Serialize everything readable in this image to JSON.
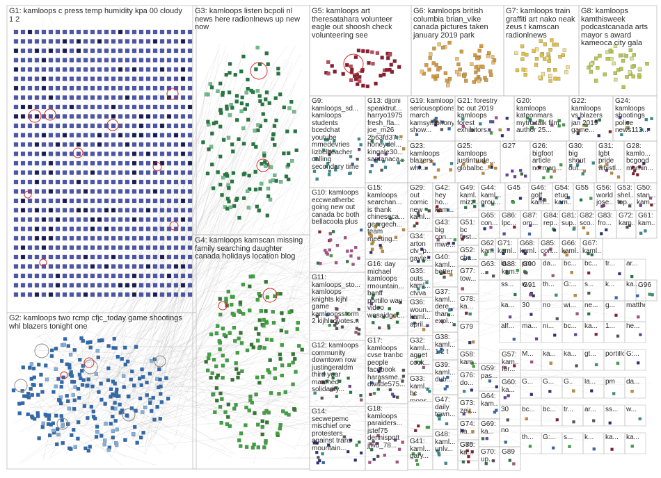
{
  "groups": [
    {
      "id": "G1",
      "label": "G1: kamloops c press temp humidity kpa 00 cloudy\n1 2"
    },
    {
      "id": "G2",
      "label": "G2: kamloops two rcmp cfjc_today game shootings\nwhl blazers tonight one"
    },
    {
      "id": "G3",
      "label": "G3: kamloops listen bcpoli nl\nnews here radionlnews up new\nnow"
    },
    {
      "id": "G4",
      "label": "G4: kamloops kamscan missing\nfamily searching daughter\ncanada holidays location blog"
    },
    {
      "id": "G5",
      "label": "G5: kamloops art\ntheresatahara volunteer\neagle out shoosh check\nvolunteering see"
    },
    {
      "id": "G6",
      "label": "G6: kamloops british\ncolumbia brian_vike\ncanada pictures taken\njanuary 2019 park"
    },
    {
      "id": "G7",
      "label": "G7: kamloops train\ngraffiti art nako neak\nzeus t kamscan\nradionlnews"
    },
    {
      "id": "G8",
      "label": "G8: kamloops\nkamthisweek\npodcastcanada arts\nmayor s award\nkameoca city gala"
    },
    {
      "id": "G9",
      "label": "G9:\nkamloops_sd...\nkamloops\nstudents\nbcedchat\nyoutube\nmmedevries\nlizbellteacher\ncalling\nsecondary time"
    },
    {
      "id": "G10",
      "label": "G10: kamloops\neccweatherbc\ngoing new out\ncanada bc both\nbellacoola plus"
    },
    {
      "id": "G11",
      "label": "G11:\nkamloops_sto...\nkamloops\nknights kijhl\ngame\nkamloopsstorm\n2 kijhlcoyotes..."
    },
    {
      "id": "G12",
      "label": "G12: kamloops\ncommunity\ndowntown row\njustingeraldm\nthird year\nmarched\nsolidarity..."
    },
    {
      "id": "G13",
      "label": "G13: djjoni\nspeaktrut...\nharryo1975\nfresh_fla...\njoe_m26\n2b63fd37...\nhoneydel...\nkingale30...\nsantanaca..."
    },
    {
      "id": "G14",
      "label": "G14:\nsecwepemc\nmischief one\nprotesters\nagainst trans\nmountain..."
    },
    {
      "id": "G15",
      "label": "G15:\nkamloops\nsearchan...\nis thank\nchineseca...\ngeorgech...\nteam\nmeeting..."
    },
    {
      "id": "G16",
      "label": "G16: day\nmichael\nkamloops\nrmountain...\nbanff\nportillo way\nvideo\nwesaidgot..."
    },
    {
      "id": "G17",
      "label": "G17:\nkamloops\ncvse tranbc\npeople\nfacebook\nharassme...\ndwade575..."
    },
    {
      "id": "G18",
      "label": "G18:\nkamloops\nparaiders...\njstef75\ndennispott\njjwd_78..."
    },
    {
      "id": "G19",
      "label": "G19: kamloops\nseriousoptions\nmarch\nkamsymphony\nshow..."
    },
    {
      "id": "G20",
      "label": "G20:\nkamloops\nkateonmars\nmytru talk film\nauthor 25..."
    },
    {
      "id": "G21",
      "label": "G21: forestry\nbc out 2019\nkamloops\nforest\nexhibitors..."
    },
    {
      "id": "G22",
      "label": "G22:\nkamloops\nvs blazers\njan 2019\ngame..."
    },
    {
      "id": "G23",
      "label": "G23:\nkamloops\nblazers\nwhl..."
    },
    {
      "id": "G24",
      "label": "G24:\nkamloops\nshootings\npolice\nnews113..."
    },
    {
      "id": "G25",
      "label": "G25:\nkamloops\njustintrude...\nglobalbc..."
    },
    {
      "id": "G26",
      "label": "G26:\nbigfoot\narticle\nnorman..."
    },
    {
      "id": "G27",
      "label": "G27"
    },
    {
      "id": "G28",
      "label": "G28:\nkamlo...\nbcgood\nmornin..."
    },
    {
      "id": "G29",
      "label": "G29:\nout\ncomic\nnew\nkaml..."
    },
    {
      "id": "G30",
      "label": "G30:\nbig\nshout\nout..."
    },
    {
      "id": "G31",
      "label": "G31:\nlgbt\npride\nwhistl..."
    },
    {
      "id": "G32",
      "label": "G32:\nkaml...\nagnet\ncock..."
    },
    {
      "id": "G33",
      "label": "G33:\nkaml...\nbc\nmoos..."
    },
    {
      "id": "G34",
      "label": "G34:\narton\nctv_p...\ngayle..."
    },
    {
      "id": "G35",
      "label": "G35:\nouts...\nkaml...\nctvva"
    },
    {
      "id": "G36",
      "label": "G36:\nwoun...\nkaml...\napril..."
    },
    {
      "id": "G37",
      "label": "G37:\nkaml...\ndere...\nthan...\nexpl..."
    },
    {
      "id": "G38",
      "label": "G38:\nkaml...\n1 2 t"
    },
    {
      "id": "G39",
      "label": "G39:\nkaml...\ndub..."
    },
    {
      "id": "G40",
      "label": "G40:\nkaml...\nbetter"
    },
    {
      "id": "G41",
      "label": "G41:\nkaml...\ngary..."
    },
    {
      "id": "G42",
      "label": "G42:\nhey\nho...\nkam..."
    },
    {
      "id": "G43",
      "label": "G43:\nbig\ncon...\nmwe..."
    },
    {
      "id": "G44",
      "label": "G44:\nkaml...\ngrou..."
    },
    {
      "id": "G45",
      "label": "G45"
    },
    {
      "id": "G46",
      "label": "G46:\ngolf\nkam..."
    },
    {
      "id": "G47",
      "label": "G47:\ndaily\ntown..."
    },
    {
      "id": "G48",
      "label": "G48:\nkaml...\nunlv..."
    },
    {
      "id": "G49",
      "label": "G49:\nkaml...\nmizz..."
    },
    {
      "id": "G50",
      "label": "G50:\nstan...\nkam..."
    },
    {
      "id": "G51",
      "label": "G51:\nbc\nfirst..."
    },
    {
      "id": "G52",
      "label": "G52:\ncha..."
    },
    {
      "id": "G53",
      "label": "G53:\nshel...\ntop..."
    },
    {
      "id": "G54",
      "label": "G54:\netug\nkam..."
    },
    {
      "id": "G55",
      "label": "G55"
    },
    {
      "id": "G56",
      "label": "G56:\nworld\njose..."
    },
    {
      "id": "G57",
      "label": "G57:\nkam...\nfor..."
    },
    {
      "id": "G58",
      "label": "G58:\nkam..."
    },
    {
      "id": "G59",
      "label": "G59:\npas..."
    },
    {
      "id": "G60",
      "label": "G60:\nka..."
    },
    {
      "id": "G61",
      "label": "G61:\nkam..."
    },
    {
      "id": "G62",
      "label": "G62:\nkam..."
    },
    {
      "id": "G63",
      "label": "G63:\n..."
    },
    {
      "id": "G64",
      "label": "G64:\nkam..."
    },
    {
      "id": "G65",
      "label": "G65:\ncon..."
    },
    {
      "id": "G66",
      "label": "G66:\nkaml..."
    },
    {
      "id": "G67",
      "label": "G67:\nkaml..."
    },
    {
      "id": "G68",
      "label": "G68:\nkaml..."
    },
    {
      "id": "G69",
      "label": "G69:\nka..."
    },
    {
      "id": "G70",
      "label": "G70:\nup..."
    },
    {
      "id": "G71",
      "label": "G71:\nkaml..."
    },
    {
      "id": "G72",
      "label": "G72:\nkam..."
    },
    {
      "id": "G73",
      "label": "G73:\nzeir..."
    },
    {
      "id": "G74",
      "label": "G74:\nka..."
    },
    {
      "id": "G75",
      "label": "G75:\nka..."
    },
    {
      "id": "G76",
      "label": "G76:\ndo..."
    },
    {
      "id": "G77",
      "label": "G77:\ntow..."
    },
    {
      "id": "G78",
      "label": "G78:\nka..."
    },
    {
      "id": "G79",
      "label": "G79"
    },
    {
      "id": "G80",
      "label": "G80:\nka..."
    },
    {
      "id": "G81",
      "label": "G81:\nsup..."
    },
    {
      "id": "G82",
      "label": "G82:\nsco..."
    },
    {
      "id": "G83",
      "label": "G83:\nfro..."
    },
    {
      "id": "G84",
      "label": "G84:\nrep..."
    },
    {
      "id": "G85",
      "label": "G85:\ncon..."
    },
    {
      "id": "G86",
      "label": "G86:\nlpc..."
    },
    {
      "id": "G87",
      "label": "G87:\nom..."
    },
    {
      "id": "G88",
      "label": "G88:\nkam..."
    },
    {
      "id": "G89",
      "label": "G89"
    },
    {
      "id": "G90",
      "label": "G90"
    },
    {
      "id": "G91",
      "label": "G91"
    },
    {
      "id": "G96",
      "label": "G96"
    }
  ],
  "minor_labels": [
    "G1...",
    "G...",
    "G1...",
    "G1...",
    "G...",
    "G1...",
    "G...",
    "G...",
    "G1...",
    "G...",
    "G...",
    "G...",
    "G..."
  ],
  "small_text": [
    "la...",
    "pm",
    "da...",
    "bc...",
    "bc...",
    "tr...",
    "ar...",
    "ss...",
    "w...",
    "th...",
    "G:...",
    "s...",
    "k...",
    "ka...",
    "ka...",
    "30",
    "no",
    "wi...",
    "ne...",
    "g...",
    "matthel...",
    "alf...",
    "ma...",
    "ni...",
    "bc...",
    "ka...",
    "1...",
    "he...",
    "M...",
    "ka...",
    "ka...",
    "gt...",
    "portillo...",
    "G:...",
    "G...",
    "G...",
    "G.."
  ],
  "colors": {
    "frame": "#bcbcbc",
    "edge": "#9b9b9b",
    "g1_node": "#2b2f7a",
    "g2_node": "#2a6ab4",
    "g3_node": "#1f7a3c",
    "g4_node": "#3aa53a",
    "g5_node": "#8c1c2c",
    "g6_node": "#d49a3c",
    "g7_node": "#e2c245",
    "g8_node": "#b7c84a",
    "highlight_ring": "#d92b2b"
  }
}
